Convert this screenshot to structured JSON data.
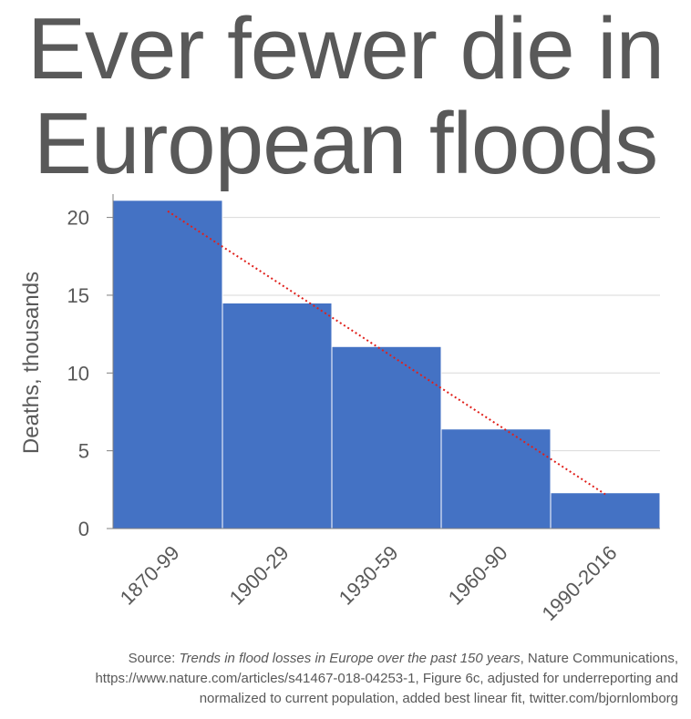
{
  "title_lines": [
    "Ever fewer die in",
    "European floods"
  ],
  "source": {
    "prefix": "Source: ",
    "paper_title": "Trends in flood losses in Europe over the past 150 years",
    "rest_line1": ", Nature Communications,",
    "line2": "https://www.nature.com/articles/s41467-018-04253-1, Figure 6c, adjusted for underreporting and",
    "line3": "normalized to current population, added best linear fit, twitter.com/bjornlomborg"
  },
  "colors": {
    "bar": "#4472c4",
    "trend": "#e0201b",
    "text": "#595959",
    "grid": "#d9d9d9"
  },
  "chart_data": {
    "type": "bar",
    "title": "Ever fewer die in European floods",
    "xlabel": "",
    "ylabel": "Deaths, thousands",
    "categories": [
      "1870-99",
      "1900-29",
      "1930-59",
      "1960-90",
      "1990-2016"
    ],
    "values": [
      21.1,
      14.5,
      11.7,
      6.4,
      2.3
    ],
    "ylim": [
      0,
      21.5
    ],
    "yticks": [
      0,
      5,
      10,
      15,
      20
    ],
    "grid": true,
    "trendline": {
      "type": "linear",
      "style": "dotted",
      "start": 20.4,
      "end": 2.2
    }
  }
}
